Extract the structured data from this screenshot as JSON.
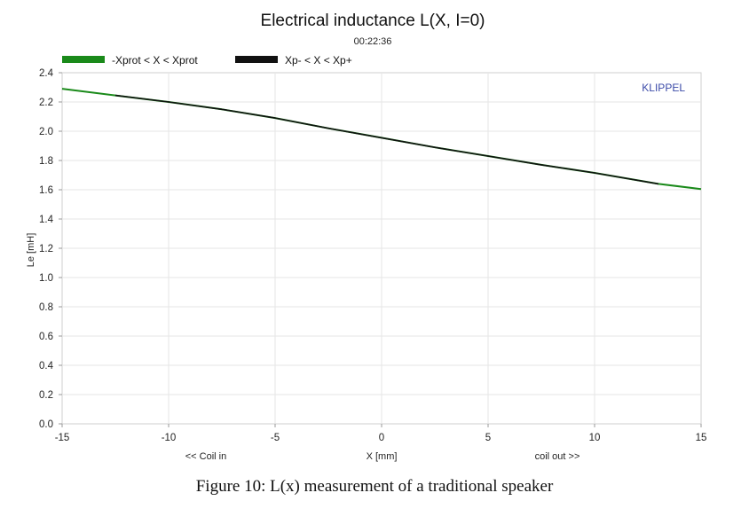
{
  "chart_data": {
    "type": "line",
    "title": "Electrical inductance L(X, I=0)",
    "subtitle": "00:22:36",
    "ylabel": "Le [mH]",
    "xlabel": "X [mm]",
    "x_annotation_left": "<< Coil in",
    "x_annotation_right": "coil out >>",
    "brand": "KLIPPEL",
    "xlim": [
      -15,
      15
    ],
    "ylim": [
      0,
      2.4
    ],
    "x_ticks": [
      -15,
      -10,
      -5,
      0,
      5,
      10,
      15
    ],
    "x_tick_labels": [
      "-15",
      "-10",
      "-5",
      "0",
      "5",
      "10",
      "15"
    ],
    "y_ticks": [
      0,
      0.2,
      0.4,
      0.6,
      0.8,
      1.0,
      1.2,
      1.4,
      1.6,
      1.8,
      2.0,
      2.2,
      2.4
    ],
    "y_tick_labels": [
      "0.0",
      "0.2",
      "0.4",
      "0.6",
      "0.8",
      "1.0",
      "1.2",
      "1.4",
      "1.6",
      "1.8",
      "2.0",
      "2.2",
      "2.4"
    ],
    "grid": true,
    "legend_position": "top-left",
    "series": [
      {
        "name": "-Xprot < X < Xprot",
        "color": "#1a8a1a",
        "x": [
          -15,
          -12.5,
          -10,
          -7.5,
          -5,
          -2.5,
          0,
          2.5,
          5,
          7.5,
          10,
          13,
          15
        ],
        "y": [
          2.29,
          2.245,
          2.2,
          2.15,
          2.09,
          2.02,
          1.955,
          1.89,
          1.83,
          1.77,
          1.715,
          1.64,
          1.605
        ]
      },
      {
        "name": "Xp- < X < Xp+",
        "color": "#111111",
        "x": [
          -12.5,
          -10,
          -7.5,
          -5,
          -2.5,
          0,
          2.5,
          5,
          7.5,
          10,
          13
        ],
        "y": [
          2.245,
          2.2,
          2.15,
          2.09,
          2.02,
          1.955,
          1.89,
          1.83,
          1.77,
          1.715,
          1.64
        ]
      }
    ]
  },
  "caption": "Figure 10: L(x) measurement of a traditional speaker"
}
